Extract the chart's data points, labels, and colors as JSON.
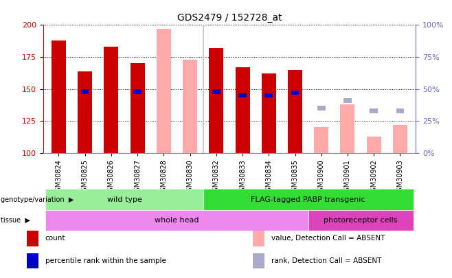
{
  "title": "GDS2479 / 152728_at",
  "samples": [
    "GSM30824",
    "GSM30825",
    "GSM30826",
    "GSM30827",
    "GSM30828",
    "GSM30830",
    "GSM30832",
    "GSM30833",
    "GSM30834",
    "GSM30835",
    "GSM30900",
    "GSM30901",
    "GSM30902",
    "GSM30903"
  ],
  "count_values": [
    188,
    164,
    183,
    170,
    null,
    null,
    182,
    167,
    162,
    165,
    null,
    null,
    null,
    null
  ],
  "percentile_values": [
    null,
    148,
    null,
    148,
    null,
    null,
    148,
    145,
    145,
    147,
    null,
    null,
    null,
    null
  ],
  "absent_value_values": [
    null,
    null,
    null,
    null,
    197,
    173,
    null,
    null,
    null,
    null,
    120,
    138,
    113,
    122
  ],
  "absent_rank_values": [
    null,
    null,
    null,
    null,
    null,
    null,
    null,
    null,
    null,
    null,
    135,
    141,
    133,
    133
  ],
  "ylim_left": [
    100,
    200
  ],
  "ylim_right": [
    0,
    100
  ],
  "yticks_left": [
    100,
    125,
    150,
    175,
    200
  ],
  "yticks_right": [
    0,
    25,
    50,
    75,
    100
  ],
  "ylabel_left_color": "#cc0000",
  "ylabel_right_color": "#6666bb",
  "bar_width": 0.55,
  "count_color": "#cc0000",
  "percentile_color": "#0000cc",
  "absent_value_color": "#ffaaaa",
  "absent_rank_color": "#aaaacc",
  "plot_bg_color": "#ffffff",
  "genotype_colors": [
    "#99ee99",
    "#33dd33"
  ],
  "genotype_labels": [
    "wild type",
    "FLAG-tagged PABP transgenic"
  ],
  "genotype_ranges": [
    [
      0,
      5
    ],
    [
      6,
      13
    ]
  ],
  "tissue_colors": [
    "#ee88ee",
    "#dd44bb"
  ],
  "tissue_labels": [
    "whole head",
    "photoreceptor cells"
  ],
  "tissue_ranges": [
    [
      0,
      9
    ],
    [
      10,
      13
    ]
  ],
  "legend_items": [
    {
      "label": "count",
      "color": "#cc0000"
    },
    {
      "label": "percentile rank within the sample",
      "color": "#0000cc"
    },
    {
      "label": "value, Detection Call = ABSENT",
      "color": "#ffaaaa"
    },
    {
      "label": "rank, Detection Call = ABSENT",
      "color": "#aaaacc"
    }
  ]
}
